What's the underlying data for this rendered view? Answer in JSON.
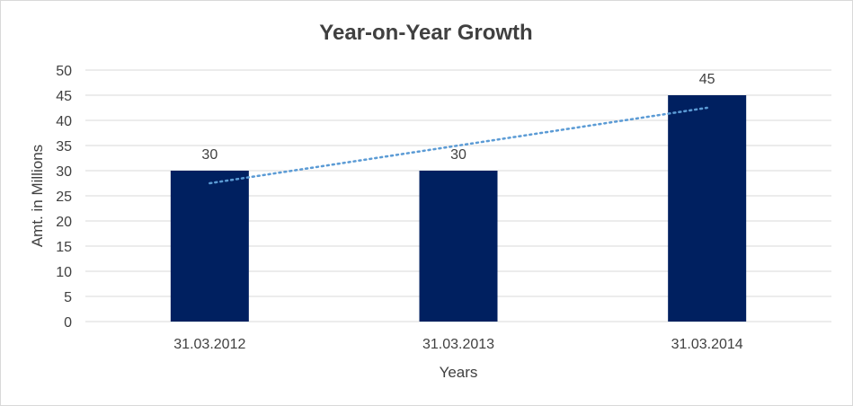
{
  "chart_data": {
    "type": "bar",
    "title": "Year-on-Year Growth",
    "xlabel": "Years",
    "ylabel": "Amt. in Millions",
    "categories": [
      "31.03.2012",
      "31.03.2013",
      "31.03.2014"
    ],
    "values": [
      30,
      30,
      45
    ],
    "data_labels": [
      "30",
      "30",
      "45"
    ],
    "ylim": [
      0,
      50
    ],
    "yticks": [
      0,
      5,
      10,
      15,
      20,
      25,
      30,
      35,
      40,
      45,
      50
    ],
    "grid": true,
    "legend": "none",
    "trendline": {
      "type": "linear",
      "style": "dotted",
      "color": "#5b9bd5"
    },
    "colors": {
      "bar": "#002060",
      "grid": "#d9d9d9"
    }
  }
}
